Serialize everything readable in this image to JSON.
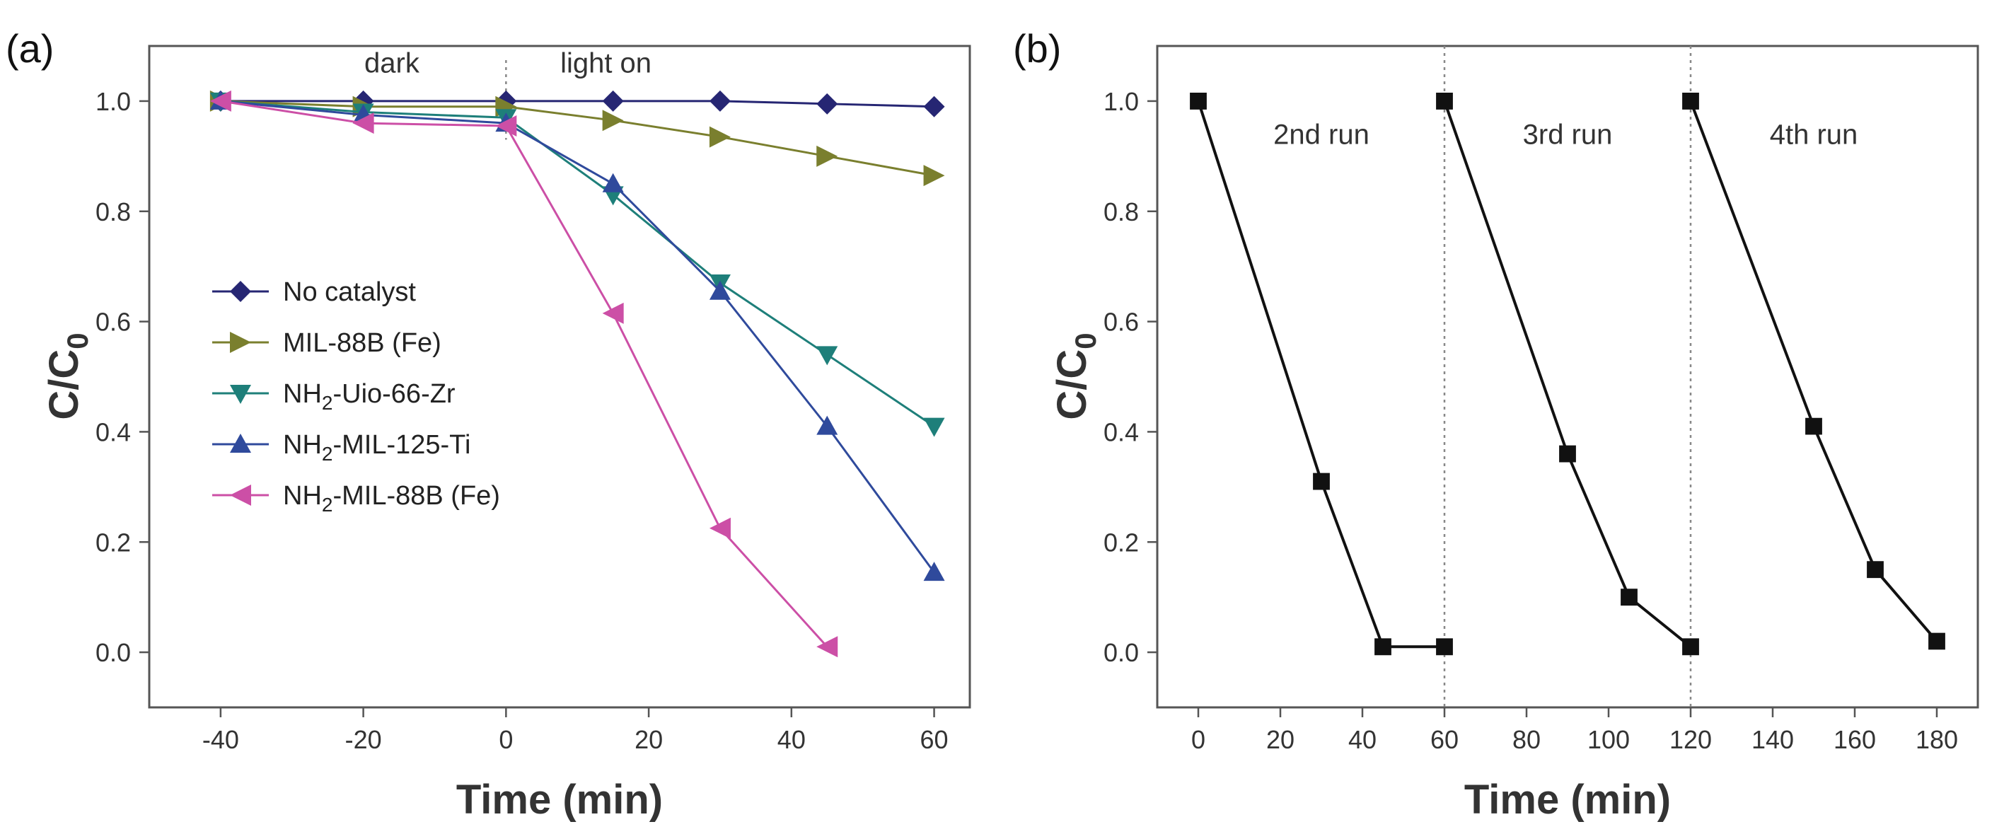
{
  "chart_data": [
    {
      "panel": "(a)",
      "type": "line",
      "xlabel": "Time (min)",
      "ylabel": "C/C",
      "ylabel_sub": "0",
      "xlim": [
        -50,
        65
      ],
      "ylim": [
        -0.1,
        1.1
      ],
      "xticks": [
        -40,
        -20,
        0,
        20,
        40,
        60
      ],
      "yticks": [
        0.0,
        0.2,
        0.4,
        0.6,
        0.8,
        1.0
      ],
      "xtick_labels": [
        "-40",
        "-20",
        "0",
        "20",
        "40",
        "60"
      ],
      "ytick_labels": [
        "0.0",
        "0.2",
        "0.4",
        "0.6",
        "0.8",
        "1.0"
      ],
      "divider_x": 0,
      "annotations": [
        {
          "text": "dark",
          "x": -16,
          "y": 1.07
        },
        {
          "text": "light on",
          "x": 14,
          "y": 1.07
        }
      ],
      "legend_position": "center-left",
      "series": [
        {
          "name": "No catalyst",
          "legend_main": "No catalyst",
          "legend_sub": "",
          "legend_rest": "",
          "marker": "diamond",
          "color": "#262673",
          "x": [
            -40,
            -20,
            0,
            15,
            30,
            45,
            60
          ],
          "y": [
            1.0,
            1.0,
            1.0,
            1.0,
            1.0,
            0.995,
            0.99
          ]
        },
        {
          "name": "MIL-88B (Fe)",
          "legend_main": "MIL-88B (Fe)",
          "legend_sub": "",
          "legend_rest": "",
          "marker": "triangle-right",
          "color": "#7a7f2e",
          "x": [
            -40,
            -20,
            0,
            15,
            30,
            45,
            60
          ],
          "y": [
            1.0,
            0.99,
            0.99,
            0.965,
            0.935,
            0.9,
            0.865
          ]
        },
        {
          "name": "NH2-Uio-66-Zr",
          "legend_main": "NH",
          "legend_sub": "2",
          "legend_rest": "-Uio-66-Zr",
          "marker": "triangle-down",
          "color": "#1e7f7a",
          "x": [
            -40,
            -20,
            0,
            15,
            30,
            45,
            60
          ],
          "y": [
            1.0,
            0.98,
            0.97,
            0.83,
            0.67,
            0.54,
            0.41
          ]
        },
        {
          "name": "NH2-MIL-125-Ti",
          "legend_main": "NH",
          "legend_sub": "2",
          "legend_rest": "-MIL-125-Ti",
          "marker": "triangle-up",
          "color": "#2f4a9c",
          "x": [
            -40,
            -20,
            0,
            15,
            30,
            45,
            60
          ],
          "y": [
            1.0,
            0.975,
            0.96,
            0.85,
            0.655,
            0.41,
            0.145
          ]
        },
        {
          "name": "NH2-MIL-88B (Fe)",
          "legend_main": "NH",
          "legend_sub": "2",
          "legend_rest": "-MIL-88B (Fe)",
          "marker": "triangle-left",
          "color": "#cc4fa6",
          "x": [
            -40,
            -20,
            0,
            15,
            30,
            45
          ],
          "y": [
            1.0,
            0.96,
            0.955,
            0.615,
            0.225,
            0.01
          ]
        }
      ]
    },
    {
      "panel": "(b)",
      "type": "line",
      "xlabel": "Time (min)",
      "ylabel": "C/C",
      "ylabel_sub": "0",
      "xlim": [
        -10,
        190
      ],
      "ylim": [
        -0.1,
        1.1
      ],
      "xticks": [
        0,
        20,
        40,
        60,
        80,
        100,
        120,
        140,
        160,
        180
      ],
      "yticks": [
        0.0,
        0.2,
        0.4,
        0.6,
        0.8,
        1.0
      ],
      "xtick_labels": [
        "0",
        "20",
        "40",
        "60",
        "80",
        "100",
        "120",
        "140",
        "160",
        "180"
      ],
      "ytick_labels": [
        "0.0",
        "0.2",
        "0.4",
        "0.6",
        "0.8",
        "1.0"
      ],
      "divider_x": [
        60,
        120
      ],
      "annotations": [
        {
          "text": "2nd run",
          "x": 30,
          "y": 0.94
        },
        {
          "text": "3rd run",
          "x": 90,
          "y": 0.94
        },
        {
          "text": "4th run",
          "x": 150,
          "y": 0.94
        }
      ],
      "series": [
        {
          "name": "run",
          "marker": "square",
          "color": "#111111",
          "segments": [
            {
              "x": [
                0,
                30,
                45,
                60
              ],
              "y": [
                1.0,
                0.31,
                0.01,
                0.01
              ]
            },
            {
              "x": [
                60,
                90,
                105,
                120
              ],
              "y": [
                1.0,
                0.36,
                0.1,
                0.01
              ]
            },
            {
              "x": [
                120,
                150,
                165,
                180
              ],
              "y": [
                1.0,
                0.41,
                0.15,
                0.02
              ]
            }
          ]
        }
      ]
    }
  ]
}
